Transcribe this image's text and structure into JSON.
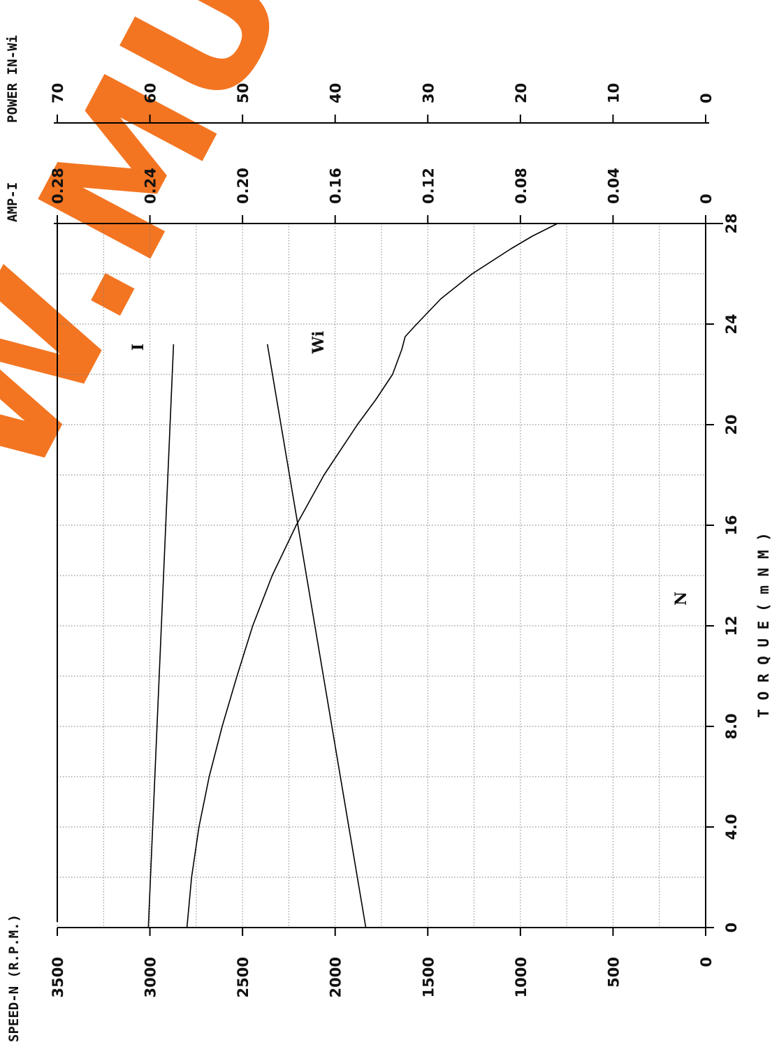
{
  "chart_data": {
    "type": "line",
    "orientation": "rotated 90 degrees clockwise",
    "xlabel": "T O R Q U E   ( m N M )",
    "xlim": [
      0,
      28
    ],
    "x_ticks": [
      "0",
      "4.0",
      "8.0",
      "12",
      "16",
      "20",
      "24",
      "28"
    ],
    "axes": [
      {
        "label": "SPEED-N  (R.P.M.)",
        "range": [
          0,
          3500
        ],
        "ticks": [
          "0",
          "500",
          "1000",
          "1500",
          "2000",
          "2500",
          "3000",
          "3500"
        ]
      },
      {
        "label": "AMP-I",
        "range": [
          0,
          0.28
        ],
        "ticks": [
          "0",
          "0.04",
          "0.08",
          "0.12",
          "0.16",
          "0.20",
          "0.24",
          "0.28"
        ]
      },
      {
        "label": "POWER  IN-Wi",
        "range": [
          0,
          70
        ],
        "ticks": [
          "0",
          "10",
          "20",
          "30",
          "40",
          "50",
          "60",
          "70"
        ]
      }
    ],
    "series": [
      {
        "name": "N",
        "axis": 0,
        "points": [
          [
            0,
            2800
          ],
          [
            2,
            2775
          ],
          [
            4,
            2735
          ],
          [
            6,
            2680
          ],
          [
            8,
            2610
          ],
          [
            10,
            2530
          ],
          [
            12,
            2445
          ],
          [
            14,
            2340
          ],
          [
            16,
            2210
          ],
          [
            18,
            2060
          ],
          [
            20,
            1880
          ],
          [
            21,
            1780
          ],
          [
            22,
            1690
          ],
          [
            23,
            1640
          ],
          [
            23.5,
            1622
          ],
          [
            24,
            1560
          ],
          [
            25,
            1430
          ],
          [
            26,
            1260
          ],
          [
            27,
            1050
          ],
          [
            27.5,
            935
          ],
          [
            28,
            800
          ]
        ]
      },
      {
        "name": "I",
        "axis": 1,
        "points": [
          [
            0,
            0.2407
          ],
          [
            23.2,
            0.2298
          ]
        ]
      },
      {
        "name": "Wi",
        "axis": 2,
        "points": [
          [
            0,
            36.69
          ],
          [
            23.2,
            47.32
          ]
        ]
      }
    ],
    "grid": true,
    "curve_labels": [
      "N",
      "I",
      "Wi"
    ],
    "watermark": "W.MUGUE"
  }
}
